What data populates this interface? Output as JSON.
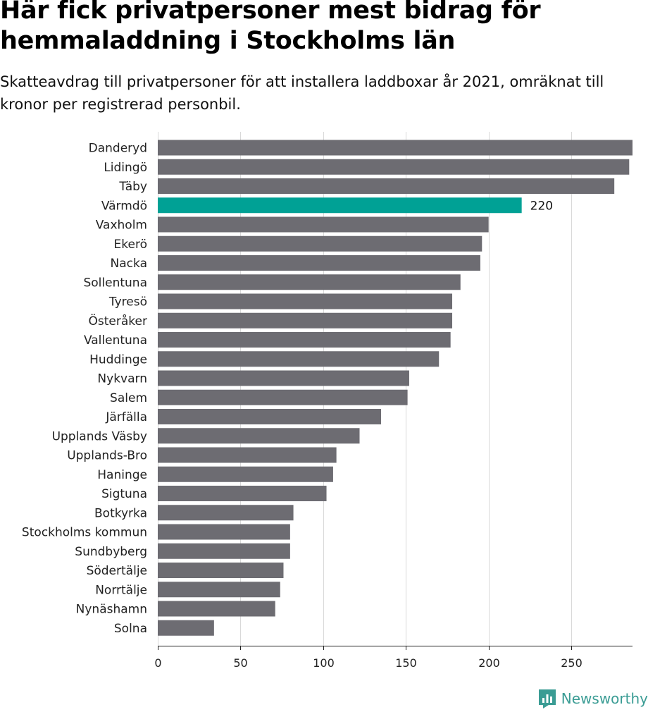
{
  "title": "Här fick privatpersoner mest bidrag för hemmaladdning i Stockholms län",
  "subtitle": "Skatteavdrag till privatpersoner för att installera laddboxar år 2021, omräknat till kronor per registrerad personbil.",
  "logo": {
    "text": "Newsworthy",
    "icon": "chart-bars-icon"
  },
  "colors": {
    "bar": "#6d6c72",
    "highlight": "#00a195",
    "grid": "#d9d9d9",
    "axis": "#222222",
    "logo": "#3a9c94"
  },
  "chart_data": {
    "type": "bar",
    "orientation": "horizontal",
    "categories": [
      "Danderyd",
      "Lidingö",
      "Täby",
      "Värmdö",
      "Vaxholm",
      "Ekerö",
      "Nacka",
      "Sollentuna",
      "Tyresö",
      "Österåker",
      "Vallentuna",
      "Huddinge",
      "Nykvarn",
      "Salem",
      "Järfälla",
      "Upplands Väsby",
      "Upplands-Bro",
      "Haninge",
      "Sigtuna",
      "Botkyrka",
      "Stockholms kommun",
      "Sundbyberg",
      "Södertälje",
      "Norrtälje",
      "Nynäshamn",
      "Solna"
    ],
    "values": [
      287,
      285,
      276,
      220,
      200,
      196,
      195,
      183,
      178,
      178,
      177,
      170,
      152,
      151,
      135,
      122,
      108,
      106,
      102,
      82,
      80,
      80,
      76,
      74,
      71,
      34
    ],
    "highlight": {
      "category": "Värmdö",
      "label": "220"
    },
    "xticks": [
      "0",
      "50",
      "100",
      "150",
      "200",
      "250"
    ],
    "xlim": [
      0,
      287
    ],
    "grid": true
  }
}
